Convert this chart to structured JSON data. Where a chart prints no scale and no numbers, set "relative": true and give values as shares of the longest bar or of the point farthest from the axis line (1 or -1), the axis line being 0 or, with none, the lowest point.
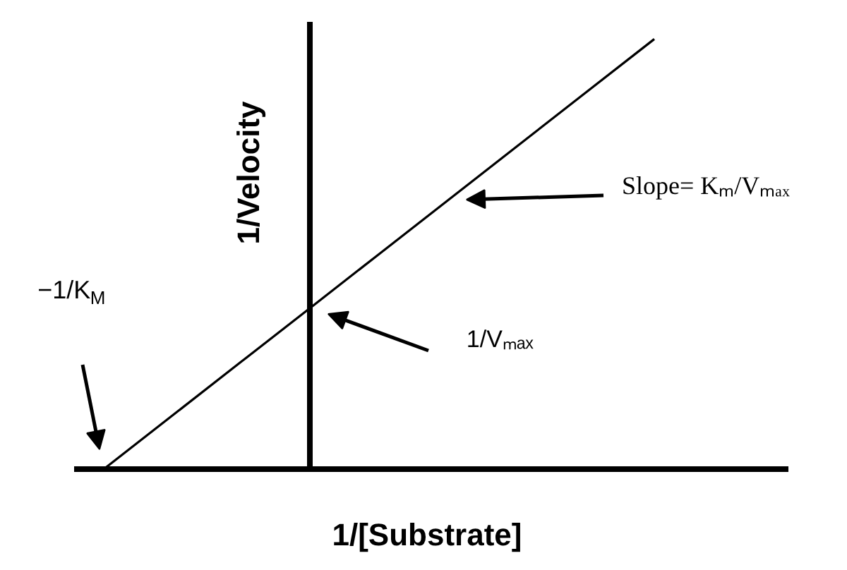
{
  "chart_data": {
    "type": "line",
    "relative": true,
    "xlabel": "1/[Substrate]",
    "ylabel": "1/Velocity",
    "categories": [
      null,
      null,
      null,
      null,
      null,
      null,
      null,
      null,
      null
    ],
    "series": [
      {
        "color": "#000000",
        "values": [
          0,
          0.125,
          0.25,
          0.375,
          0.5,
          0.625,
          0.75,
          0.875,
          1
        ]
      }
    ],
    "annotations": [
      "−1/K$_{M}$",
      "Slope= Kₘ/Vₘₐₓ",
      "1/Vₘₐₓ"
    ]
  }
}
